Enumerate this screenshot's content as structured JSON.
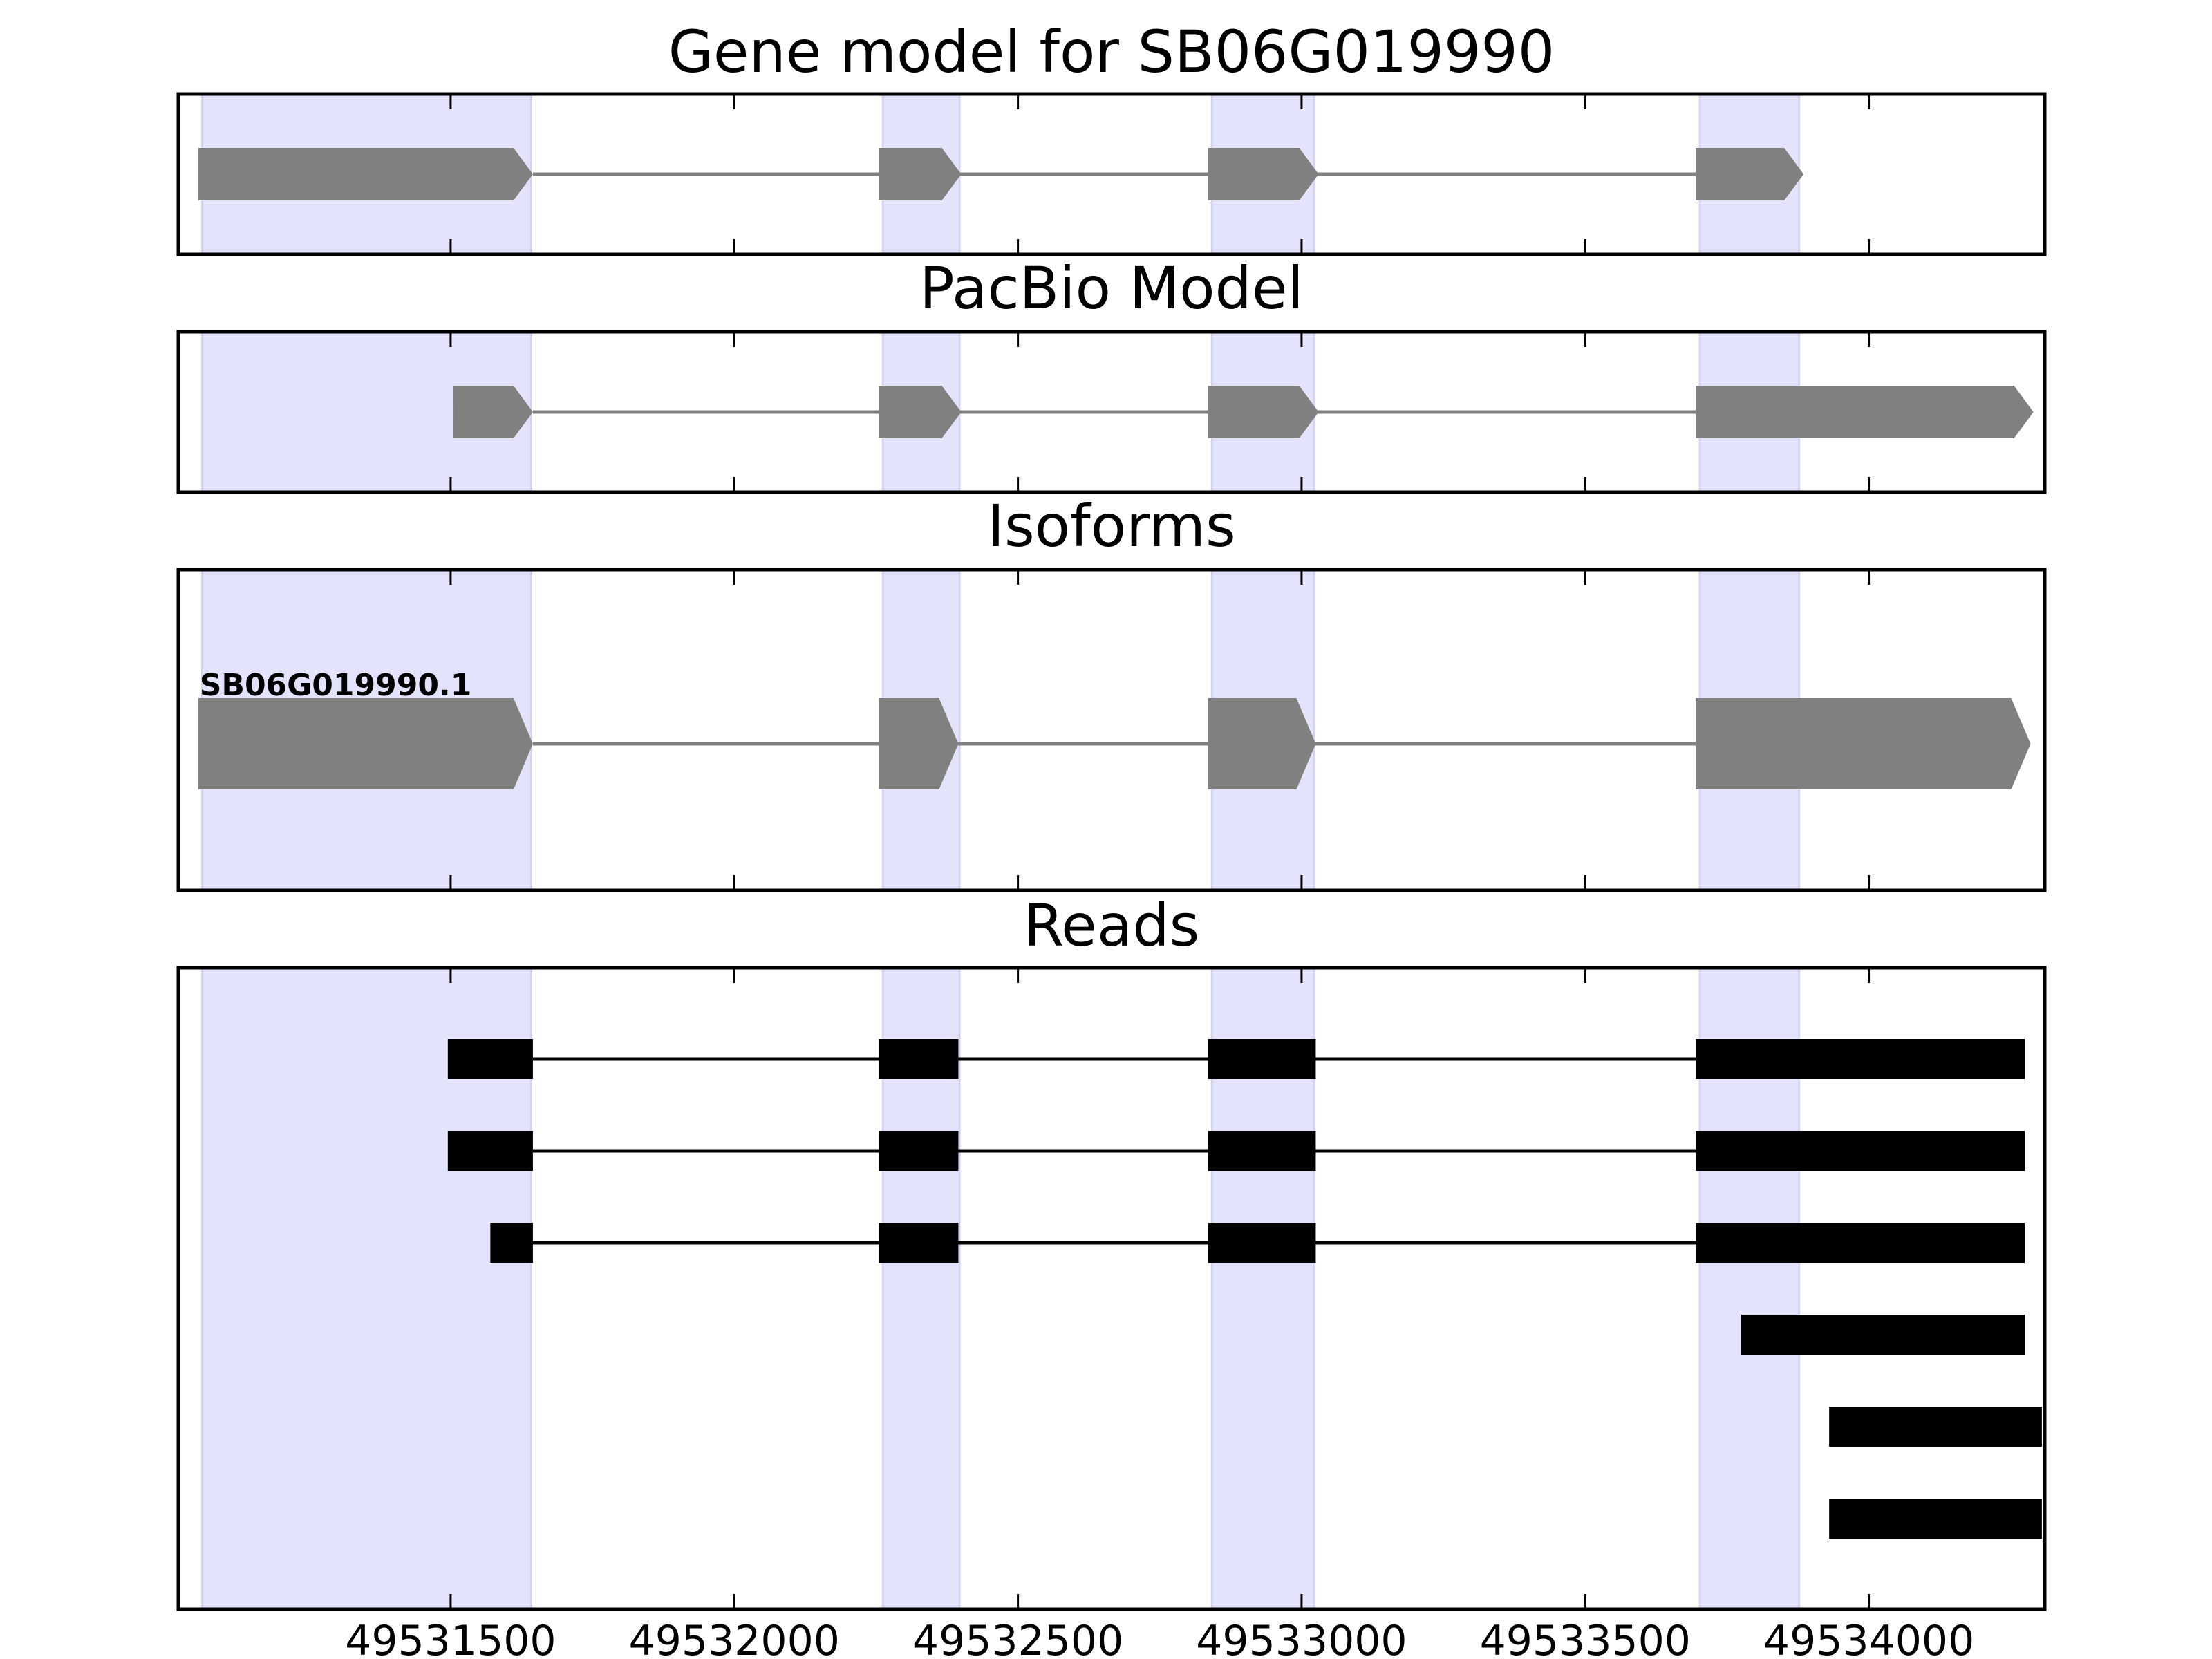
{
  "chart_data": {
    "type": "gene-track",
    "x_axis": {
      "range": [
        49531020,
        49534310
      ],
      "ticks": [
        49531500,
        49532000,
        49532500,
        49533000,
        49533500,
        49534000
      ]
    },
    "exon_regions": [
      [
        49531062,
        49531642
      ],
      [
        49532262,
        49532397
      ],
      [
        49532842,
        49533022
      ],
      [
        49533702,
        49533877
      ]
    ],
    "panels": [
      {
        "id": "gene-model",
        "title": "Gene model for SB06G019990",
        "tracks": [
          {
            "label": "",
            "style": "gray",
            "blocks": [
              [
                49531055,
                49531645
              ],
              [
                49532255,
                49532400
              ],
              [
                49532835,
                49533030
              ],
              [
                49533695,
                49533885
              ]
            ]
          }
        ]
      },
      {
        "id": "pacbio-model",
        "title": "PacBio Model",
        "tracks": [
          {
            "label": "",
            "style": "gray",
            "blocks": [
              [
                49531505,
                49531645
              ],
              [
                49532255,
                49532400
              ],
              [
                49532835,
                49533030
              ],
              [
                49533695,
                49534290
              ]
            ]
          }
        ]
      },
      {
        "id": "isoforms",
        "title": "Isoforms",
        "tracks": [
          {
            "label": "SB06G019990.1",
            "style": "gray",
            "blocks": [
              [
                49531055,
                49531645
              ],
              [
                49532255,
                49532395
              ],
              [
                49532835,
                49533025
              ],
              [
                49533695,
                49534285
              ]
            ]
          }
        ]
      },
      {
        "id": "reads",
        "title": "Reads",
        "tracks": [
          {
            "label": "",
            "style": "black",
            "blocks": [
              [
                49531495,
                49531645
              ],
              [
                49532255,
                49532395
              ],
              [
                49532835,
                49533025
              ],
              [
                49533695,
                49534275
              ]
            ]
          },
          {
            "label": "",
            "style": "black",
            "blocks": [
              [
                49531495,
                49531645
              ],
              [
                49532255,
                49532395
              ],
              [
                49532835,
                49533025
              ],
              [
                49533695,
                49534275
              ]
            ]
          },
          {
            "label": "",
            "style": "black",
            "blocks": [
              [
                49531570,
                49531645
              ],
              [
                49532255,
                49532395
              ],
              [
                49532835,
                49533025
              ],
              [
                49533695,
                49534275
              ]
            ]
          },
          {
            "label": "",
            "style": "black",
            "blocks": [
              [
                49533775,
                49534275
              ]
            ]
          },
          {
            "label": "",
            "style": "black",
            "blocks": [
              [
                49533930,
                49534305
              ]
            ]
          },
          {
            "label": "",
            "style": "black",
            "blocks": [
              [
                49533930,
                49534305
              ]
            ]
          }
        ]
      }
    ],
    "colors": {
      "gray_feature": "#808080",
      "read_feature": "#000000",
      "exon_highlight": "#e3e3fb"
    }
  }
}
